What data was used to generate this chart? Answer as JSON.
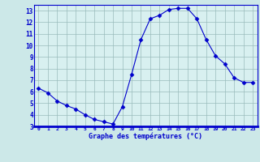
{
  "hours": [
    0,
    1,
    2,
    3,
    4,
    5,
    6,
    7,
    8,
    9,
    10,
    11,
    12,
    13,
    14,
    15,
    16,
    17,
    18,
    19,
    20,
    21,
    22,
    23
  ],
  "temps": [
    6.3,
    5.9,
    5.2,
    4.8,
    4.5,
    4.0,
    3.6,
    3.4,
    3.2,
    4.7,
    7.5,
    10.5,
    12.3,
    12.6,
    13.1,
    13.2,
    13.2,
    12.3,
    10.5,
    9.1,
    8.4,
    7.2,
    6.8,
    6.8
  ],
  "line_color": "#0000cc",
  "marker": "D",
  "marker_size": 2.5,
  "bg_color": "#cce8e8",
  "grid_color": "#99bbbb",
  "xlabel": "Graphe des températures (°C)",
  "xlabel_color": "#0000cc",
  "tick_color": "#0000cc",
  "ylim": [
    3,
    13.5
  ],
  "yticks": [
    3,
    4,
    5,
    6,
    7,
    8,
    9,
    10,
    11,
    12,
    13
  ],
  "xlim": [
    -0.5,
    23.5
  ],
  "xticks": [
    0,
    1,
    2,
    3,
    4,
    5,
    6,
    7,
    8,
    9,
    10,
    11,
    12,
    13,
    14,
    15,
    16,
    17,
    18,
    19,
    20,
    21,
    22,
    23
  ],
  "spine_color": "#0000cc",
  "plot_bg_color": "#d8f0f0",
  "xaxis_bar_color": "#0000cc"
}
